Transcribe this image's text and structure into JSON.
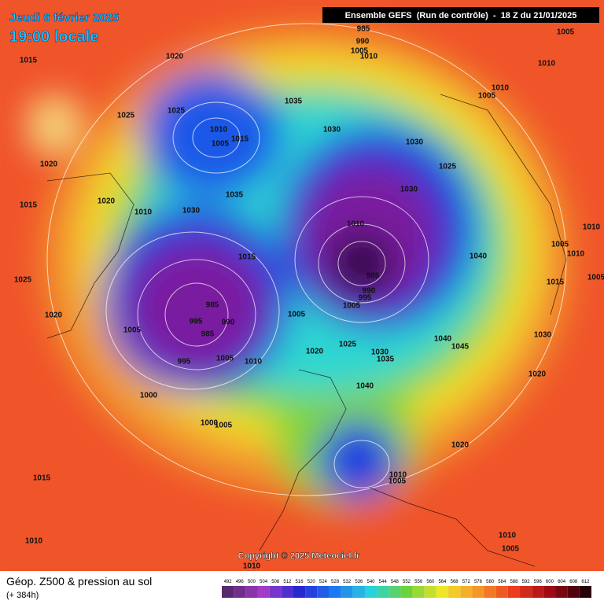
{
  "header": {
    "date": "Jeudi 6 février 2025",
    "time": "19:00 locale",
    "run": "Ensemble GEFS  (Run de contrôle)  -  18 Z du 21/01/2025"
  },
  "copyright": "Copyright © 2025 Meteociel.fr",
  "footer": {
    "title": "Géop. Z500 & pression au sol",
    "subtitle": "(+ 384h)"
  },
  "scale": {
    "labels": [
      492,
      496,
      500,
      504,
      508,
      512,
      516,
      520,
      524,
      528,
      532,
      536,
      540,
      544,
      548,
      552,
      556,
      560,
      564,
      568,
      572,
      576,
      580,
      584,
      588,
      592,
      596,
      600,
      604,
      608,
      612
    ]
  },
  "isobars": {
    "labels": [
      1015,
      1020,
      1025,
      1025,
      1010,
      1005,
      1015,
      1020,
      1015,
      1020,
      1010,
      1030,
      1035,
      1035,
      1030,
      1030,
      1025,
      1030,
      1010,
      1015,
      985,
      990,
      995,
      1005,
      1005,
      985,
      995,
      990,
      985,
      1005,
      1005,
      1010,
      995,
      1000,
      1020,
      1025,
      1030,
      1035,
      1040,
      1040,
      1045,
      1040,
      1005,
      1010,
      1015,
      1030,
      1020,
      1020,
      1010,
      1005,
      1015,
      1010,
      1010,
      1005,
      1010,
      1005,
      1000,
      985,
      990,
      1005,
      1010,
      1005,
      1010,
      1010,
      1005,
      1010,
      1005,
      1025,
      1020
    ]
  }
}
